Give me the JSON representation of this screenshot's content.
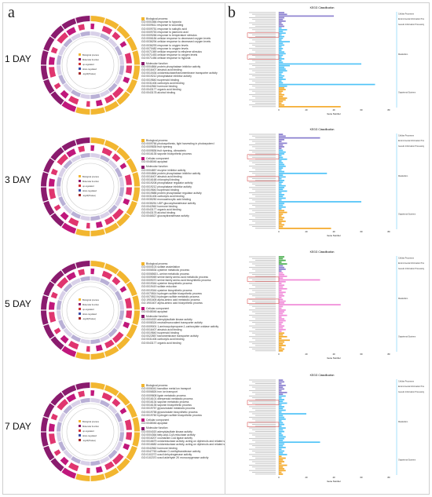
{
  "panels": {
    "a": "a",
    "b": "b"
  },
  "colors": {
    "bio": "#f2b630",
    "cell": "#c0177c",
    "mol": "#8a1b6e",
    "blue": "#4fc3f7",
    "purple": "#8a7fcf",
    "pink": "#f08ad8",
    "green": "#4caf50",
    "orange": "#f4a826",
    "red": "#d23434"
  },
  "day_labels": [
    "1 DAY",
    "3 DAY",
    "5 DAY",
    "7 DAY"
  ],
  "go_legend": [
    {
      "sections": [
        {
          "title": "Biological process",
          "color": "#f2b630",
          "terms": [
            "GO:0001666 response to hypoxia",
            "GO:0009611 response to wounding",
            "GO:0009751 response to salicylic acid",
            "GO:0009753 response to jasmonic acid",
            "GO:0009266 response to temperature stimulus",
            "GO:0006184 cellular response to decreased oxygen levels",
            "GO:0036294 cellular response to decreased oxygen levels",
            "GO:0036293 response to oxygen levels",
            "GO:0070482 response to oxygen levels",
            "GO:0071369 cellular response to ethylene stimulus",
            "GO:0071453 cellular response to oxygen levels",
            "GO:0071456 cellular response to hypoxia"
          ]
        },
        {
          "title": "Molecular function",
          "color": "#8a1b6e",
          "terms": [
            "GO:0004864 protein phosphatase inhibitor activity",
            "GO:0016407 abscisic acid binding",
            "GO:0010434 oxidoreductase/transmembrane transporter activity",
            "GO:0019212 phosphatase inhibitor activity",
            "GO:0019840 isoprenoid binding",
            "GO:0031406 carboxylic acid binding",
            "GO:0042562 hormone binding",
            "GO:0043177 organic acid binding",
            "GO:0043178 alcohol binding"
          ]
        }
      ]
    },
    {
      "sections": [
        {
          "title": "Biological process",
          "color": "#f2b630",
          "terms": [
            "GO:0009766 photosynthesis, light harvesting in photosystem I",
            "GO:0009835 fruit ripening",
            "GO:0009836 fruit ripening, climacteric",
            "GO:0016135 saponin biosynthetic process"
          ]
        },
        {
          "title": "Cellular component",
          "color": "#c0177c",
          "terms": [
            "GO:0048046 apoplast"
          ]
        },
        {
          "title": "Molecular function",
          "color": "#8a1b6e",
          "terms": [
            "GO:0004857 enzyme inhibitor activity",
            "GO:0004864 protein phosphatase inhibitor activity",
            "GO:0016407 abscisic acid binding",
            "GO:0016168 chlorophyll binding",
            "GO:0019208 phosphatase regulator activity",
            "GO:0019212 phosphatase inhibitor activity",
            "GO:0019840 isoprenoid binding",
            "GO:0019888 protein phosphatase regulator activity",
            "GO:0031406 carboxylic acid binding",
            "GO:0035250 monocarboxylic acid binding",
            "GO:0035251 UDP-glucosyltransferase activity",
            "GO:0042562 hormone binding",
            "GO:0043177 organic acid binding",
            "GO:0043178 alcohol binding",
            "GO:0046527 glucosyltransferase activity"
          ]
        }
      ]
    },
    {
      "sections": [
        {
          "title": "Biological process",
          "color": "#f2b630",
          "terms": [
            "GO:0000103 sulfate assimilation",
            "GO:0006534 cysteine metabolic process",
            "GO:0006563 L-serine metabolic process",
            "GO:0009069 serine family amino acid metabolic process",
            "GO:0009070 serine family amino acid biosynthetic process",
            "GO:0019344 cysteine biosynthetic process",
            "GO:0019419 sulfate reduction",
            "GO:0019344 cysteine biosynthetic process",
            "GO:0070814 hydrogen sulfide biosynthetic process",
            "GO:0070813 hydrogen sulfide metabolic process",
            "GO:1901605 alpha-amino acid metabolic process",
            "GO:1901607 alpha-amino acid biosynthetic process"
          ]
        },
        {
          "title": "Cellular component",
          "color": "#c0177c",
          "terms": [
            "GO:0048046 apoplast"
          ]
        },
        {
          "title": "Molecular function",
          "color": "#8a1b6e",
          "terms": [
            "GO:0004020 adenylylsulfate kinase activity",
            "GO:0008324 neutral/monovalent transporter activity",
            "GO:0009001 1-aminocyclopropane-1-carboxylate oxidase activity",
            "GO:0016407 abscisic acid binding",
            "GO:0019840 isoprenoid binding",
            "GO:0022857 transmembrane transporter activity",
            "GO:0031406 carboxylic acid binding",
            "GO:0043177 organic acid binding"
          ]
        }
      ]
    },
    {
      "sections": [
        {
          "title": "Biological process",
          "color": "#f2b630",
          "terms": [
            "GO:0006041 transition metal ion transport",
            "GO:0006826 iron ion transport",
            "GO:0009808 lignin metabolic process",
            "GO:0016101 diterpenoid metabolic process",
            "GO:0016134 saponin metabolic process",
            "GO:0016135 saponin biosynthetic process",
            "GO:0019757 glycosinolate metabolic process",
            "GO:0019758 glycosinolate biosynthetic process",
            "GO:0019760 hydrogen sulfide biosynthetic process"
          ]
        },
        {
          "title": "Cellular component",
          "color": "#c0177c",
          "terms": [
            "GO:0048046 apoplast"
          ]
        },
        {
          "title": "Molecular function",
          "color": "#8a1b6e",
          "terms": [
            "GO:0004020 adenylylsulfate kinase activity",
            "GO:0004364 fatty-acyl-CoA reductase activity",
            "GO:0016207 coumarate-CoA ligase activity",
            "GO:0016679 oxidoreductase activity, acting on diphenols and related substances as donors",
            "GO:0016682 oxidoreductase activity, acting on diphenols and related substances as donors, oxygen as acceptor",
            "GO:0042562 hormone binding",
            "GO:0047763 caffeate O-methyltransferase activity",
            "GO:0102272 uracil dehydrogenase activity",
            "GO:0102370 uracil aldehyde 2K monooxygenase activity"
          ]
        }
      ]
    }
  ],
  "circle_legend": [
    "Biological process",
    "Molecular function",
    "up-regulated",
    "down-regulated",
    "-log10(Pvalue)"
  ],
  "kegg": {
    "title": "KEGG Classification",
    "xlabel": "Gene Number",
    "categories": [
      "Cellular Processes",
      "Environmental Information Processing",
      "Genetic Information Processing",
      "Metabolism",
      "Organismal Systems"
    ],
    "charts": [
      {
        "bars": [
          4,
          6,
          40,
          4,
          3,
          5,
          2,
          3,
          4,
          2,
          6,
          3,
          5,
          2,
          4,
          3,
          2,
          8,
          3,
          4,
          2,
          3,
          2,
          4,
          5,
          3,
          2,
          4,
          2,
          3,
          60,
          8,
          4,
          5,
          6,
          3,
          2,
          4,
          3,
          5,
          2,
          3,
          70,
          6,
          4,
          5,
          3,
          2,
          4,
          3,
          6,
          5,
          3,
          2,
          4,
          45
        ]
      },
      {
        "bars": [
          3,
          5,
          30,
          4,
          2,
          6,
          3,
          4,
          2,
          3,
          5,
          4,
          2,
          3,
          6,
          2,
          3,
          4,
          5,
          3,
          2,
          4,
          35,
          3,
          5,
          2,
          4,
          3,
          2,
          5,
          4,
          3,
          6,
          2,
          4,
          3,
          5,
          2,
          60,
          4,
          3,
          5,
          2,
          4,
          6,
          3,
          2,
          4,
          3,
          5,
          2,
          4,
          3,
          38
        ]
      },
      {
        "bars": [
          4,
          3,
          5,
          2,
          6,
          3,
          4,
          5,
          2,
          3,
          4,
          6,
          3,
          30,
          5,
          2,
          4,
          3,
          6,
          2,
          5,
          3,
          4,
          2,
          3,
          5,
          4,
          45,
          3,
          2,
          5,
          4,
          3,
          6,
          2,
          4,
          5,
          3,
          2,
          4,
          3,
          5,
          2,
          4,
          3,
          6,
          2,
          8,
          4,
          3,
          5,
          2,
          4,
          3
        ]
      },
      {
        "bars": [
          3,
          4,
          2,
          5,
          3,
          4,
          2,
          6,
          3,
          5,
          2,
          4,
          3,
          6,
          2,
          4,
          3,
          5,
          2,
          20,
          3,
          4,
          5,
          2,
          3,
          4,
          2,
          5,
          3,
          4,
          2,
          3,
          5,
          4,
          3,
          30,
          4,
          3,
          5,
          2,
          4,
          3,
          6,
          2,
          5,
          3,
          4,
          2,
          6,
          3,
          4,
          5,
          2,
          3
        ]
      }
    ],
    "ticks": [
      "0",
      "20",
      "40",
      "60",
      "80"
    ]
  }
}
